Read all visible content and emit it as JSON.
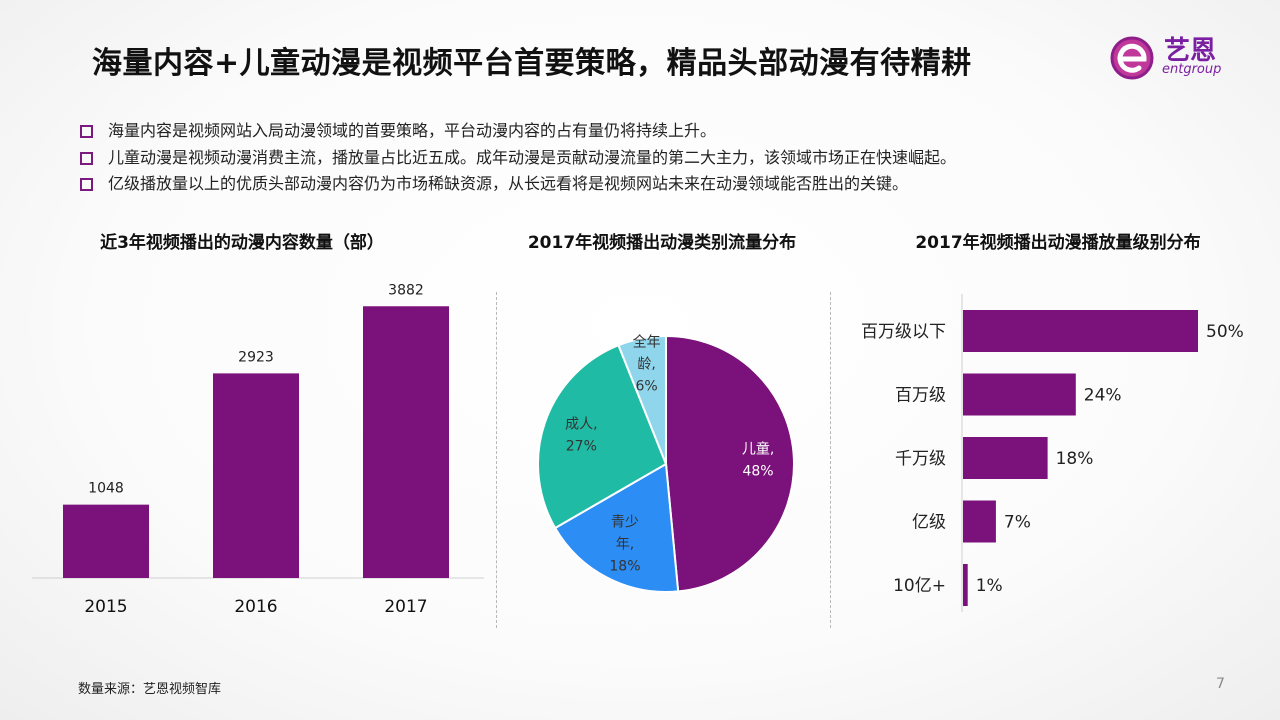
{
  "header": {
    "title": "海量内容+儿童动漫是视频平台首要策略，精品头部动漫有待精耕",
    "logo_text": "艺恩",
    "logo_sub": "entgroup"
  },
  "bullets": [
    "海量内容是视频网站入局动漫领域的首要策略，平台动漫内容的占有量仍将持续上升。",
    "儿童动漫是视频动漫消费主流，播放量占比近五成。成年动漫是贡献动漫流量的第二大主力，该领域市场正在快速崛起。",
    "亿级播放量以上的优质头部动漫内容仍为市场稀缺资源，从长远看将是视频网站未来在动漫领域能否胜出的关键。"
  ],
  "colors": {
    "purple": "#7b117b",
    "teal": "#20bba5",
    "blue": "#2c8ef5",
    "lightblue": "#8fd6ec"
  },
  "chart_data": [
    {
      "type": "bar",
      "title": "近3年视频播出的动漫内容数量（部）",
      "categories": [
        "2015",
        "2016",
        "2017"
      ],
      "values": [
        1048,
        2923,
        3882
      ],
      "data_labels": [
        "1048",
        "2923",
        "3882"
      ],
      "ylim": [
        0,
        4400
      ],
      "grid": false
    },
    {
      "type": "pie",
      "title": "2017年视频播出动漫类别流量分布",
      "slices": [
        {
          "label": "儿童,",
          "value": 48,
          "value_label": "48%",
          "color": "#7b117b"
        },
        {
          "label": "青少年,",
          "value": 18,
          "value_label": "18%",
          "color": "#2c8ef5"
        },
        {
          "label": "成人,",
          "value": 27,
          "value_label": "27%",
          "color": "#20bba5"
        },
        {
          "label": "全年龄,",
          "value": 6,
          "value_label": "6%",
          "color": "#8fd6ec"
        }
      ]
    },
    {
      "type": "bar",
      "orientation": "horizontal",
      "title": "2017年视频播出动漫播放量级别分布",
      "categories": [
        "百万级以下",
        "百万级",
        "千万级",
        "亿级",
        "10亿+"
      ],
      "values": [
        50,
        24,
        18,
        7,
        1
      ],
      "data_labels": [
        "50%",
        "24%",
        "18%",
        "7%",
        "1%"
      ],
      "xlim": [
        0,
        50
      ]
    }
  ],
  "footer": {
    "source": "数量来源：艺恩视频智库",
    "page": "7"
  }
}
